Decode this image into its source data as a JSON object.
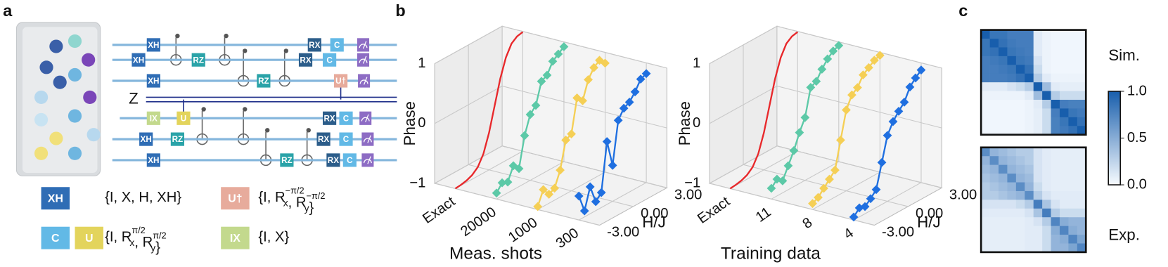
{
  "panel_labels": [
    "a",
    "b",
    "c"
  ],
  "circuit": {
    "wires": [
      [
        "XH",
        "RX",
        "C"
      ],
      [
        "XH",
        "RZ",
        "RX",
        "C"
      ],
      [
        "XH",
        "RZ",
        "U†"
      ],
      [
        "IX",
        "U",
        "RX",
        "C"
      ],
      [
        "XH",
        "RZ",
        "RX",
        "C"
      ],
      [
        "XH",
        "RZ",
        "RX",
        "C"
      ]
    ],
    "z_label": "Z",
    "legend": [
      {
        "gates": [
          "XH"
        ],
        "set": [
          "{I, X, H, XH}"
        ]
      },
      {
        "gates": [
          "U†"
        ],
        "set": [
          "{I, ",
          {
            "base": "R",
            "sub": "x",
            "sup": "−π/2"
          },
          ", ",
          {
            "base": "R",
            "sub": "y",
            "sup": "−π/2"
          },
          "}"
        ]
      },
      {
        "gates": [
          "C",
          "U"
        ],
        "set": [
          "{I, ",
          {
            "base": "R",
            "sub": "x",
            "sup": "π/2"
          },
          ", ",
          {
            "base": "R",
            "sub": "y",
            "sup": "π/2"
          },
          "}"
        ]
      },
      {
        "gates": [
          "IX"
        ],
        "set": [
          "{I, X}"
        ]
      }
    ]
  },
  "chart_data": [
    {
      "type": "line3d",
      "xlabel": "H/J",
      "ylabel": "Phase",
      "category_label": "Meas. shots",
      "categories": [
        "Exact",
        "20000",
        "1000",
        "300"
      ],
      "x": [
        -3,
        -2.5,
        -2,
        -1.5,
        -1,
        -0.5,
        0,
        0.5,
        1,
        1.5,
        2,
        2.5,
        3
      ],
      "xlim": [
        -3,
        3
      ],
      "xticks": [
        {
          "value": -3,
          "label": "-3.00"
        },
        {
          "value": 0,
          "label": "0.00"
        },
        {
          "value": 3,
          "label": "3.00"
        }
      ],
      "ylim": [
        -1,
        1
      ],
      "yticks": [
        {
          "value": -1,
          "label": "−1"
        },
        0,
        1
      ],
      "series": [
        {
          "color": "#e8282b",
          "marker": "none",
          "values": [
            -1,
            -0.99,
            -0.97,
            -0.93,
            -0.85,
            -0.68,
            -0.38,
            0.02,
            0.42,
            0.72,
            0.9,
            0.97,
            0.99
          ]
        },
        {
          "color": "#5cc9a7",
          "marker": "diamond",
          "values": [
            -0.9,
            -0.78,
            -0.82,
            -0.6,
            -0.7,
            -0.2,
            0.1,
            0.2,
            0.55,
            0.6,
            0.78,
            0.85,
            0.92
          ]
        },
        {
          "color": "#f5cf55",
          "marker": "diamond",
          "values": [
            -0.95,
            -0.72,
            -0.85,
            -0.8,
            -0.55,
            -0.1,
            -0.05,
            0.5,
            0.4,
            0.7,
            0.85,
            0.92,
            0.82
          ]
        },
        {
          "color": "#1f6fe0",
          "marker": "diamond",
          "values": [
            -0.6,
            -0.9,
            -0.55,
            -0.85,
            -0.75,
            0.05,
            -0.4,
            0.3,
            0.45,
            0.5,
            0.62,
            0.78,
            0.82
          ]
        }
      ]
    },
    {
      "type": "line3d",
      "xlabel": "H/J",
      "ylabel": "Phase",
      "category_label": "Training data",
      "categories": [
        "Exact",
        "11",
        "8",
        "4"
      ],
      "x": [
        -3,
        -2.5,
        -2,
        -1.5,
        -1,
        -0.5,
        0,
        0.5,
        1,
        1.5,
        2,
        2.5,
        3
      ],
      "xlim": [
        -3,
        3
      ],
      "xticks": [
        {
          "value": -3,
          "label": "-3.00"
        },
        {
          "value": 0,
          "label": "0.00"
        },
        {
          "value": 3,
          "label": "3.00"
        }
      ],
      "ylim": [
        -1,
        1
      ],
      "yticks": [
        {
          "value": -1,
          "label": "−1"
        },
        0,
        1
      ],
      "series": [
        {
          "color": "#e8282b",
          "marker": "none",
          "values": [
            -1,
            -0.99,
            -0.97,
            -0.93,
            -0.85,
            -0.68,
            -0.38,
            0.02,
            0.42,
            0.72,
            0.9,
            0.97,
            0.99
          ]
        },
        {
          "color": "#5cc9a7",
          "marker": "diamond",
          "values": [
            -0.82,
            -0.72,
            -0.8,
            -0.6,
            -0.4,
            -0.15,
            0.05,
            0.5,
            0.55,
            0.7,
            0.82,
            0.9,
            0.94
          ]
        },
        {
          "color": "#f5cf55",
          "marker": "diamond",
          "values": [
            -0.9,
            -0.85,
            -0.75,
            -0.65,
            -0.55,
            -0.1,
            0.35,
            0.55,
            0.62,
            0.78,
            0.85,
            0.92,
            0.95
          ]
        },
        {
          "color": "#1f6fe0",
          "marker": "diamond",
          "values": [
            -0.95,
            -0.85,
            -0.88,
            -0.8,
            -0.7,
            -0.3,
            0.1,
            0.28,
            0.4,
            0.5,
            0.7,
            0.8,
            0.88
          ]
        }
      ]
    },
    {
      "type": "heatmap",
      "panels": [
        {
          "label": "Sim.",
          "values": [
            [
              1,
              0.85,
              0.85,
              0.8,
              0.8,
              0.8,
              0.1,
              0.05,
              0.03,
              0.03,
              0.03,
              0.03
            ],
            [
              0.85,
              1,
              0.88,
              0.82,
              0.8,
              0.8,
              0.1,
              0.05,
              0.03,
              0.03,
              0.03,
              0.03
            ],
            [
              0.85,
              0.88,
              1,
              0.85,
              0.82,
              0.8,
              0.1,
              0.05,
              0.03,
              0.03,
              0.03,
              0.03
            ],
            [
              0.8,
              0.82,
              0.85,
              1,
              0.85,
              0.82,
              0.15,
              0.05,
              0.03,
              0.03,
              0.03,
              0.03
            ],
            [
              0.8,
              0.8,
              0.82,
              0.85,
              1,
              0.88,
              0.2,
              0.05,
              0.03,
              0.03,
              0.03,
              0.03
            ],
            [
              0.8,
              0.8,
              0.8,
              0.82,
              0.88,
              1,
              0.3,
              0.1,
              0.05,
              0.05,
              0.05,
              0.05
            ],
            [
              0.1,
              0.1,
              0.1,
              0.15,
              0.2,
              0.3,
              1,
              0.4,
              0.1,
              0.08,
              0.08,
              0.08
            ],
            [
              0.05,
              0.05,
              0.05,
              0.05,
              0.05,
              0.1,
              0.4,
              1,
              0.3,
              0.2,
              0.2,
              0.2
            ],
            [
              0.03,
              0.03,
              0.03,
              0.03,
              0.03,
              0.05,
              0.1,
              0.3,
              1,
              0.8,
              0.78,
              0.78
            ],
            [
              0.03,
              0.03,
              0.03,
              0.03,
              0.03,
              0.05,
              0.08,
              0.2,
              0.8,
              1,
              0.85,
              0.82
            ],
            [
              0.03,
              0.03,
              0.03,
              0.03,
              0.03,
              0.05,
              0.08,
              0.2,
              0.78,
              0.85,
              1,
              0.88
            ],
            [
              0.03,
              0.03,
              0.03,
              0.03,
              0.03,
              0.05,
              0.08,
              0.2,
              0.78,
              0.82,
              0.88,
              1
            ]
          ]
        },
        {
          "label": "Exp.",
          "values": [
            [
              0.7,
              0.45,
              0.4,
              0.35,
              0.3,
              0.3,
              0.15,
              0.1,
              0.08,
              0.08,
              0.08,
              0.08
            ],
            [
              0.45,
              0.7,
              0.45,
              0.4,
              0.35,
              0.3,
              0.15,
              0.1,
              0.08,
              0.08,
              0.08,
              0.08
            ],
            [
              0.4,
              0.45,
              0.7,
              0.45,
              0.4,
              0.35,
              0.15,
              0.1,
              0.08,
              0.08,
              0.08,
              0.08
            ],
            [
              0.35,
              0.4,
              0.45,
              0.7,
              0.45,
              0.4,
              0.15,
              0.1,
              0.08,
              0.08,
              0.08,
              0.08
            ],
            [
              0.3,
              0.35,
              0.4,
              0.45,
              0.7,
              0.45,
              0.2,
              0.1,
              0.08,
              0.08,
              0.08,
              0.08
            ],
            [
              0.3,
              0.3,
              0.35,
              0.4,
              0.45,
              0.7,
              0.3,
              0.15,
              0.1,
              0.1,
              0.1,
              0.1
            ],
            [
              0.15,
              0.15,
              0.15,
              0.15,
              0.2,
              0.3,
              0.8,
              0.35,
              0.15,
              0.1,
              0.1,
              0.1
            ],
            [
              0.1,
              0.1,
              0.1,
              0.1,
              0.1,
              0.15,
              0.35,
              0.8,
              0.3,
              0.2,
              0.2,
              0.2
            ],
            [
              0.08,
              0.08,
              0.08,
              0.08,
              0.08,
              0.1,
              0.15,
              0.3,
              0.75,
              0.5,
              0.45,
              0.45
            ],
            [
              0.08,
              0.08,
              0.08,
              0.08,
              0.08,
              0.1,
              0.1,
              0.2,
              0.5,
              0.75,
              0.5,
              0.45
            ],
            [
              0.08,
              0.08,
              0.08,
              0.08,
              0.08,
              0.1,
              0.1,
              0.2,
              0.45,
              0.5,
              0.75,
              0.55
            ],
            [
              0.08,
              0.08,
              0.08,
              0.08,
              0.08,
              0.1,
              0.1,
              0.2,
              0.45,
              0.45,
              0.55,
              0.75
            ]
          ]
        }
      ],
      "colorbar": {
        "lim": [
          0,
          1
        ],
        "ticks": [
          {
            "value": 0,
            "label": "0.0"
          },
          {
            "value": 0.5,
            "label": "0.5"
          },
          {
            "value": 1,
            "label": "1.0"
          }
        ]
      }
    }
  ]
}
